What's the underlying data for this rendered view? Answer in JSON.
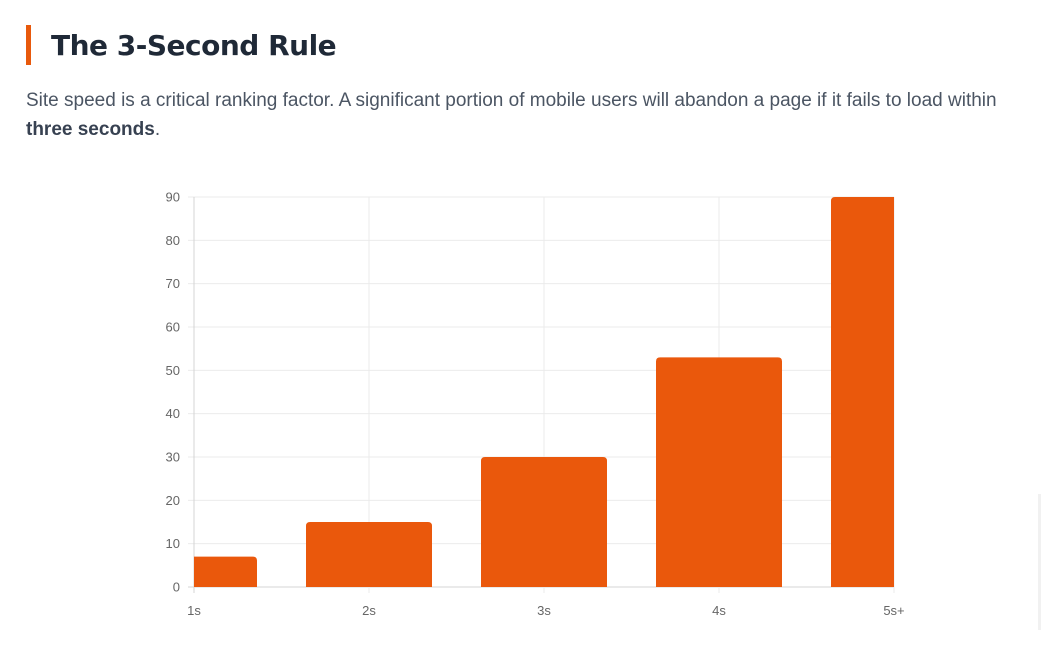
{
  "header": {
    "title": "The 3-Second Rule",
    "accent_color": "#e8590c"
  },
  "description": {
    "text_before": "Site speed is a critical ranking factor. A significant portion of mobile users will abandon a page if it fails to load within ",
    "emphasis": "three seconds",
    "text_after": "."
  },
  "chart_data": {
    "type": "bar",
    "categories": [
      "1s",
      "2s",
      "3s",
      "4s",
      "5s+"
    ],
    "values": [
      7,
      15,
      30,
      53,
      90
    ],
    "ylim": [
      0,
      90
    ],
    "yticks": [
      0,
      10,
      20,
      30,
      40,
      50,
      60,
      70,
      80,
      90
    ],
    "title": "",
    "xlabel": "",
    "ylabel": "",
    "grid": true,
    "bar_color": "#ea580c"
  }
}
